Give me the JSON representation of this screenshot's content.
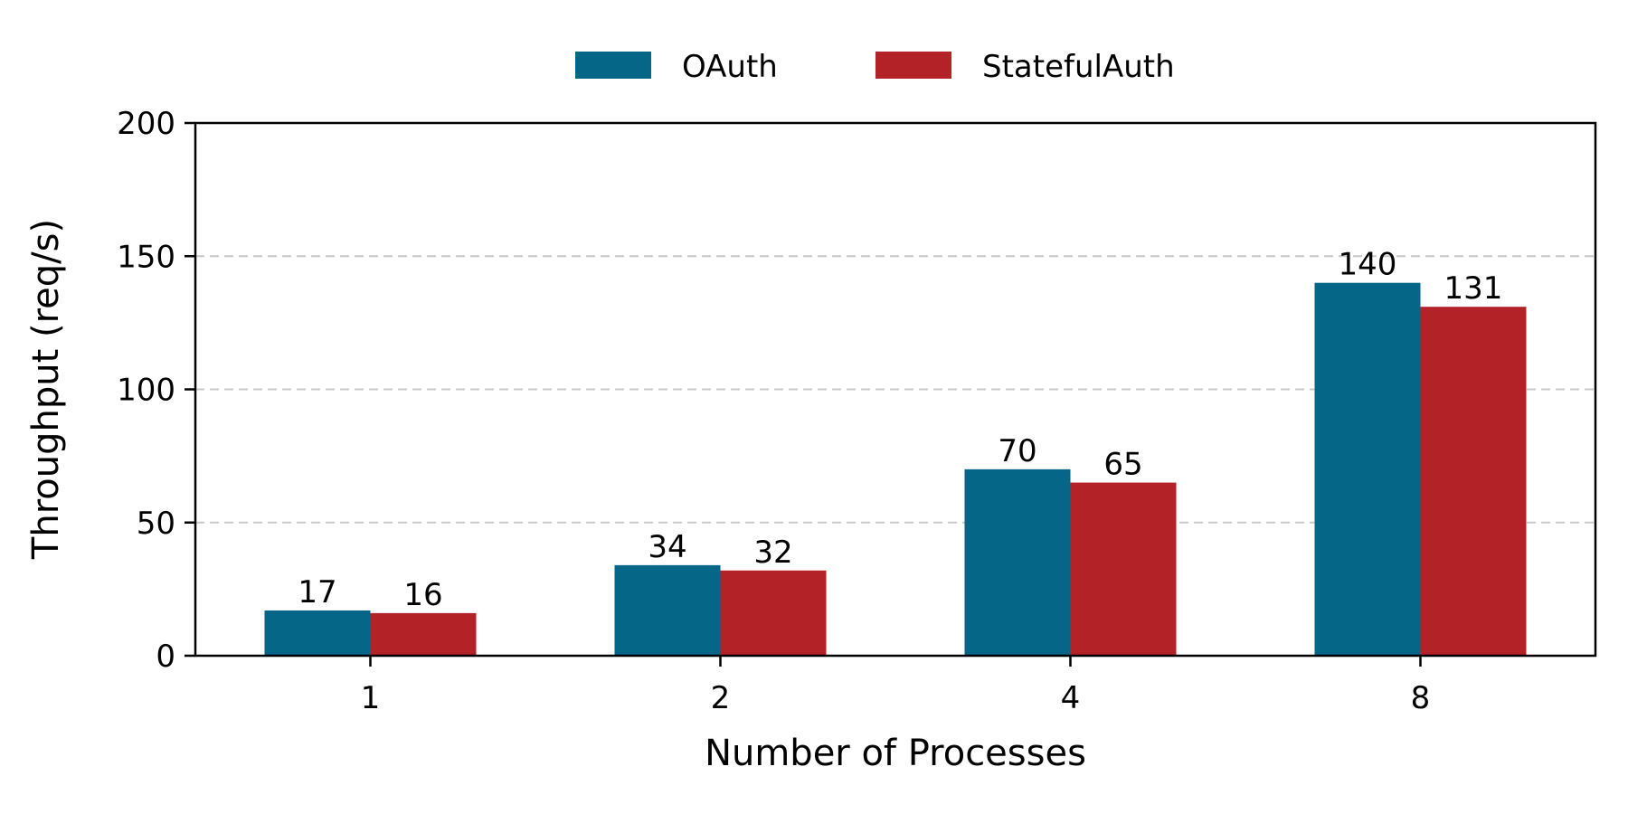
{
  "chart_data": {
    "type": "bar",
    "categories": [
      "1",
      "2",
      "4",
      "8"
    ],
    "series": [
      {
        "name": "OAuth",
        "color": "#066688",
        "values": [
          17,
          34,
          70,
          140
        ]
      },
      {
        "name": "StatefulAuth",
        "color": "#b22226",
        "values": [
          16,
          32,
          65,
          131
        ]
      }
    ],
    "data_labels": [
      [
        "17",
        "34",
        "70",
        "140"
      ],
      [
        "16",
        "32",
        "65",
        "131"
      ]
    ],
    "xlabel": "Number of Processes",
    "ylabel": "Throughput (req/s)",
    "ylim": [
      0,
      200
    ],
    "yticks": [
      0,
      50,
      100,
      150,
      200
    ],
    "ytick_labels": [
      "0",
      "50",
      "100",
      "150",
      "200"
    ],
    "grid": "horizontal dashed",
    "legend": {
      "placement": "top-center",
      "columns": 2
    }
  }
}
